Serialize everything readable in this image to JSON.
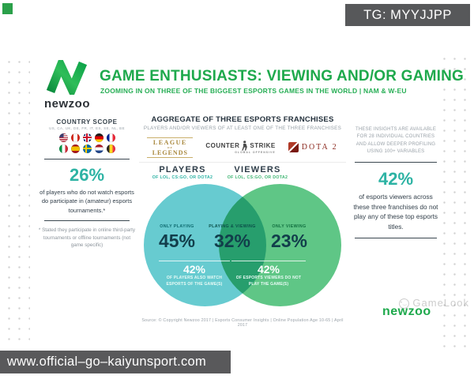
{
  "badge": {
    "text": "TG: MYYJJPP"
  },
  "header": {
    "logo_text": "newzoo",
    "title": "GAME ENTHUSIASTS: VIEWING AND/OR GAMING",
    "subtitle": "ZOOMING IN ON THREE OF THE BIGGEST ESPORTS GAMES IN THE WORLD | NAM & W-EU"
  },
  "left_panel": {
    "scope_title": "COUNTRY SCOPE",
    "scope_codes": "US, CA, UK, DE, FR, IT, ES, SE, NL, BE",
    "flags": [
      "us",
      "ca",
      "uk",
      "de",
      "fr",
      "it",
      "es",
      "se",
      "nl",
      "be"
    ],
    "stat_value": "26%",
    "stat_text": "of players who do not watch esports do participate in (amateur) esports tournaments.*",
    "footnote": "* Stated they participate in online third-party tournaments or offline tournaments (not game specific)"
  },
  "aggregate": {
    "title": "AGGREGATE OF THREE ESPORTS FRANCHISES",
    "subtitle": "PLAYERS AND/OR VIEWERS OF AT LEAST ONE OF THE THREE FRANCHISES",
    "games": {
      "lol_line1": "LEAGUE",
      "lol_of": "OF",
      "lol_line2": "LEGENDS",
      "cs_left": "COUNTER",
      "cs_right": "STRIKE",
      "cs_sub": "GLOBAL OFFENSIVE",
      "dota_label": "DOTA 2"
    }
  },
  "venn": {
    "players_label": "PLAYERS",
    "players_sub": "OF LOL, CS:GO, OR DOTA2",
    "viewers_label": "VIEWERS",
    "viewers_sub": "OF LOL, CS:GO, OR DOTA2",
    "only_playing_label": "ONLY PLAYING",
    "only_playing_value": "45%",
    "both_label": "PLAYING & VIEWING",
    "both_value": "32%",
    "only_viewing_label": "ONLY VIEWING",
    "only_viewing_value": "23%",
    "left_callout_value": "42%",
    "left_callout_text": "OF PLAYERS ALSO WATCH ESPORTS OF THE GAME(S)",
    "right_callout_value": "42%",
    "right_callout_text": "OF ESPORTS VIEWERS DO NOT PLAY THE GAME(S)"
  },
  "right_panel": {
    "note": "THESE INSIGHTS ARE AVAILABLE FOR 28 INDIVIDUAL COUNTRIES AND ALLOW DEEPER PROFILING USING 100+ VARIABLES",
    "stat_value": "42%",
    "stat_text": "of esports viewers across these three franchises do not play any of these top esports titles."
  },
  "footer": {
    "source": "Source: © Copyright Newzoo 2017 | Esports Consumer Insights | Online Population Age 10-65 | April 2017",
    "watermark": "GameLook",
    "brand": "newzoo"
  },
  "bottom_bar": {
    "url": "www.official–go–kaiyunsport.com"
  },
  "colors": {
    "brand_green": "#1ea94c",
    "accent_teal": "#2db3a4",
    "venn_left": "#67cbd0",
    "venn_right": "#5fc686",
    "dark_navy": "#123e4b",
    "overlay_gray": "#58595b"
  },
  "chart_data": {
    "type": "venn",
    "title": "Aggregate of three esports franchises (League of Legends, CS:GO, Dota 2) — players and/or viewers, NAM & W-EU",
    "sets": [
      {
        "label": "Only playing",
        "value_pct": 45
      },
      {
        "label": "Playing & viewing",
        "value_pct": 32
      },
      {
        "label": "Only viewing",
        "value_pct": 23
      }
    ],
    "callouts": [
      {
        "value_pct": 42,
        "text": "of players also watch esports of the game(s)"
      },
      {
        "value_pct": 42,
        "text": "of esports viewers do not play the game(s)"
      }
    ],
    "side_stats": [
      {
        "value_pct": 26,
        "text": "of players who do not watch esports do participate in (amateur) esports tournaments"
      },
      {
        "value_pct": 42,
        "text": "of esports viewers across these three franchises do not play any of these top esports titles"
      }
    ]
  }
}
